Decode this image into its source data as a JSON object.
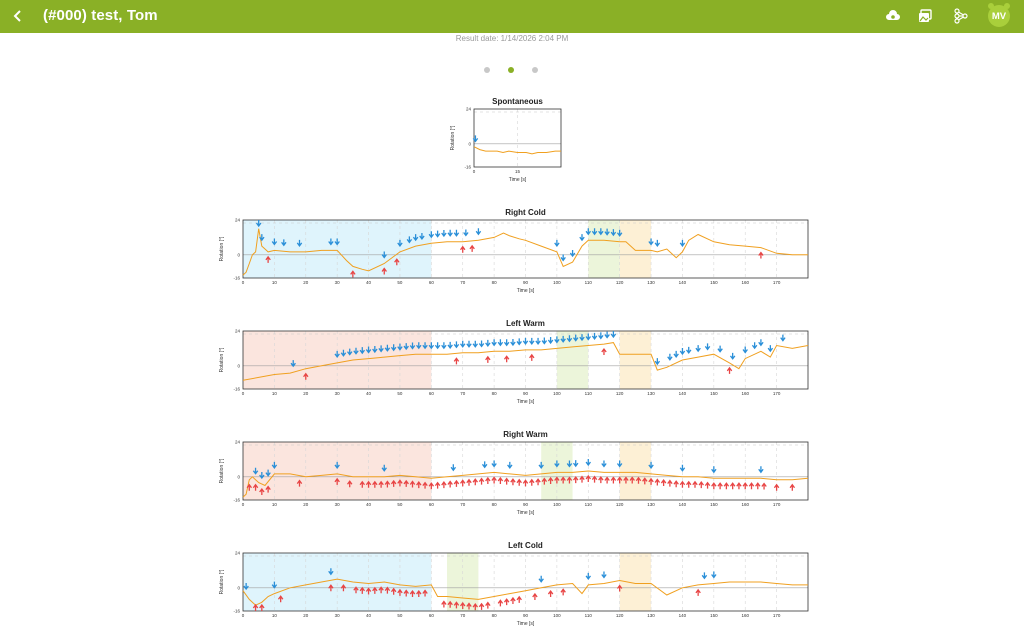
{
  "header": {
    "title": "(#000) test, Tom",
    "back_icon": "chevron-left-icon",
    "icons": [
      "cloud-sync-icon",
      "image-stack-icon",
      "network-icon"
    ],
    "avatar": "MV"
  },
  "result_date": "Result date: 1/14/2026 2:04 PM",
  "pager": {
    "pages": 3,
    "active": 1
  },
  "colors": {
    "header": "#8ab026",
    "trace": "#f0a020",
    "down_arrow": "#2a8fd8",
    "up_arrow": "#e84545",
    "cold_band": "#dff4fc",
    "warm_band": "#fbe5de",
    "green_band": "#ecf5da",
    "yellow_band": "#fdf0d5"
  },
  "chart_data": [
    {
      "type": "line",
      "title": "Spontaneous",
      "xlabel": "Time [s]",
      "ylabel": "Rotation [°]",
      "xlim": [
        0,
        30
      ],
      "ylim": [
        -16,
        24
      ],
      "xticks": [
        "0",
        "15"
      ],
      "yticks": [
        "24",
        "0",
        "-16"
      ],
      "bands": [],
      "x": [
        0,
        2,
        4,
        6,
        8,
        10,
        12,
        15,
        18,
        20,
        22,
        25,
        28,
        30
      ],
      "y": [
        -2,
        -4,
        -5,
        -5,
        -5,
        -6,
        -5,
        -6,
        -6,
        -7,
        -6,
        -6,
        -5,
        -5
      ],
      "down_markers": [
        0.5
      ],
      "up_markers": []
    },
    {
      "type": "line",
      "title": "Right Cold",
      "xlabel": "Time [s]",
      "ylabel": "Rotation [°]",
      "xlim": [
        0,
        180
      ],
      "ylim": [
        -16,
        24
      ],
      "xticks": [
        "0",
        "10",
        "20",
        "30",
        "40",
        "50",
        "60",
        "70",
        "80",
        "90",
        "100",
        "110",
        "120",
        "130",
        "140",
        "150",
        "160",
        "170"
      ],
      "yticks": [
        "24",
        "0",
        "-16"
      ],
      "bands": [
        {
          "from": 0,
          "to": 60,
          "kind": "cold"
        },
        {
          "from": 110,
          "to": 120,
          "kind": "green"
        },
        {
          "from": 120,
          "to": 130,
          "kind": "yellow"
        }
      ],
      "x": [
        0,
        1,
        2,
        3,
        4,
        5,
        6,
        7,
        8,
        10,
        15,
        20,
        25,
        30,
        33,
        35,
        38,
        40,
        45,
        50,
        55,
        60,
        65,
        70,
        75,
        80,
        83,
        85,
        88,
        90,
        95,
        100,
        102,
        105,
        108,
        110,
        115,
        120,
        122,
        125,
        130,
        132,
        135,
        138,
        140,
        142,
        145,
        150,
        155,
        160,
        165,
        170,
        175,
        180
      ],
      "y": [
        -14,
        -12,
        -6,
        0,
        2,
        18,
        6,
        4,
        2,
        3,
        2,
        2,
        3,
        3,
        -4,
        -8,
        -10,
        -11,
        -6,
        2,
        6,
        8,
        9,
        9,
        10,
        12,
        15,
        13,
        11,
        10,
        6,
        2,
        -8,
        -5,
        6,
        10,
        10,
        9,
        9,
        3,
        3,
        2,
        4,
        -2,
        2,
        10,
        14,
        9,
        7,
        6,
        5,
        1,
        0,
        0
      ],
      "down_markers": [
        5,
        6,
        10,
        13,
        18,
        28,
        30,
        45,
        50,
        53,
        55,
        57,
        60,
        62,
        64,
        66,
        68,
        71,
        75,
        100,
        102,
        105,
        108,
        110,
        112,
        114,
        116,
        118,
        120,
        130,
        132,
        140
      ],
      "up_markers": [
        8,
        35,
        45,
        49,
        70,
        73,
        165
      ]
    },
    {
      "type": "line",
      "title": "Left Warm",
      "xlabel": "Time [s]",
      "ylabel": "Rotation [°]",
      "xlim": [
        0,
        180
      ],
      "ylim": [
        -16,
        24
      ],
      "xticks": [
        "0",
        "10",
        "20",
        "30",
        "40",
        "50",
        "60",
        "70",
        "80",
        "90",
        "100",
        "110",
        "120",
        "130",
        "140",
        "150",
        "160",
        "170"
      ],
      "yticks": [
        "24",
        "0",
        "-16"
      ],
      "bands": [
        {
          "from": 0,
          "to": 60,
          "kind": "warm"
        },
        {
          "from": 100,
          "to": 110,
          "kind": "green"
        },
        {
          "from": 120,
          "to": 130,
          "kind": "yellow"
        }
      ],
      "x": [
        0,
        5,
        10,
        15,
        20,
        25,
        30,
        35,
        40,
        45,
        50,
        55,
        60,
        65,
        70,
        75,
        80,
        85,
        90,
        95,
        100,
        105,
        110,
        115,
        118,
        120,
        125,
        130,
        132,
        135,
        140,
        145,
        150,
        155,
        158,
        160,
        165,
        168,
        170,
        175,
        180
      ],
      "y": [
        -10,
        -8,
        -6,
        -5,
        -2,
        0,
        2,
        4,
        5,
        6,
        7,
        8,
        8,
        8,
        9,
        9,
        10,
        10,
        11,
        11,
        12,
        13,
        14,
        15,
        16,
        8,
        8,
        8,
        -3,
        -1,
        4,
        6,
        8,
        2,
        -2,
        5,
        10,
        6,
        14,
        12,
        14
      ],
      "down_markers": [
        16,
        30,
        32,
        34,
        36,
        38,
        40,
        42,
        44,
        46,
        48,
        50,
        52,
        54,
        56,
        58,
        60,
        62,
        64,
        66,
        68,
        70,
        72,
        74,
        76,
        78,
        80,
        82,
        84,
        86,
        88,
        90,
        92,
        94,
        96,
        98,
        100,
        102,
        104,
        106,
        108,
        110,
        112,
        114,
        116,
        118,
        132,
        136,
        138,
        140,
        142,
        145,
        148,
        152,
        156,
        160,
        163,
        165,
        168,
        172
      ],
      "up_markers": [
        20,
        68,
        78,
        84,
        92,
        115,
        155
      ]
    },
    {
      "type": "line",
      "title": "Right Warm",
      "xlabel": "Time [s]",
      "ylabel": "Rotation [°]",
      "xlim": [
        0,
        180
      ],
      "ylim": [
        -16,
        24
      ],
      "xticks": [
        "0",
        "10",
        "20",
        "30",
        "40",
        "50",
        "60",
        "70",
        "80",
        "90",
        "100",
        "110",
        "120",
        "130",
        "140",
        "150",
        "160",
        "170"
      ],
      "yticks": [
        "24",
        "0",
        "-16"
      ],
      "bands": [
        {
          "from": 0,
          "to": 60,
          "kind": "warm"
        },
        {
          "from": 95,
          "to": 105,
          "kind": "green"
        },
        {
          "from": 120,
          "to": 130,
          "kind": "yellow"
        }
      ],
      "x": [
        0,
        1,
        2,
        3,
        5,
        7,
        10,
        15,
        20,
        25,
        30,
        35,
        40,
        45,
        50,
        55,
        60,
        65,
        70,
        75,
        80,
        85,
        90,
        95,
        100,
        105,
        110,
        115,
        120,
        125,
        130,
        135,
        140,
        145,
        150,
        155,
        160,
        165,
        170,
        175,
        180
      ],
      "y": [
        -14,
        -12,
        -2,
        0,
        -4,
        -6,
        2,
        2,
        0,
        1,
        2,
        0,
        0,
        0,
        1,
        0,
        -1,
        0,
        1,
        2,
        3,
        2,
        1,
        2,
        3,
        3,
        4,
        3,
        3,
        3,
        2,
        1,
        0,
        0,
        -1,
        -1,
        -1,
        -1,
        -2,
        -2,
        -1
      ],
      "down_markers": [
        4,
        6,
        8,
        10,
        30,
        45,
        67,
        77,
        80,
        85,
        95,
        100,
        104,
        106,
        110,
        115,
        120,
        130,
        140,
        150,
        165
      ],
      "up_markers": [
        2,
        4,
        6,
        8,
        18,
        30,
        34,
        38,
        40,
        42,
        44,
        46,
        48,
        50,
        52,
        54,
        56,
        58,
        60,
        62,
        64,
        66,
        68,
        70,
        72,
        74,
        76,
        78,
        80,
        82,
        84,
        86,
        88,
        90,
        92,
        94,
        96,
        98,
        100,
        102,
        104,
        106,
        108,
        110,
        112,
        114,
        116,
        118,
        120,
        122,
        124,
        126,
        128,
        130,
        132,
        134,
        136,
        138,
        140,
        142,
        144,
        146,
        148,
        150,
        152,
        154,
        156,
        158,
        160,
        162,
        164,
        166,
        170,
        175
      ]
    },
    {
      "type": "line",
      "title": "Left Cold",
      "xlabel": "Time [s]",
      "ylabel": "Rotation [°]",
      "xlim": [
        0,
        180
      ],
      "ylim": [
        -16,
        24
      ],
      "xticks": [
        "0",
        "10",
        "20",
        "30",
        "40",
        "50",
        "60",
        "70",
        "80",
        "90",
        "100",
        "110",
        "120",
        "130",
        "140",
        "150",
        "160",
        "170"
      ],
      "yticks": [
        "24",
        "0",
        "-16"
      ],
      "bands": [
        {
          "from": 0,
          "to": 60,
          "kind": "cold"
        },
        {
          "from": 65,
          "to": 75,
          "kind": "green"
        },
        {
          "from": 120,
          "to": 130,
          "kind": "yellow"
        }
      ],
      "x": [
        0,
        2,
        4,
        6,
        8,
        10,
        15,
        20,
        25,
        30,
        35,
        40,
        45,
        50,
        55,
        60,
        62,
        65,
        70,
        75,
        80,
        85,
        90,
        95,
        100,
        105,
        108,
        110,
        115,
        120,
        125,
        130,
        135,
        140,
        145,
        150,
        155,
        160,
        165,
        170,
        175,
        180
      ],
      "y": [
        -2,
        -8,
        -12,
        -10,
        -6,
        -4,
        0,
        2,
        4,
        6,
        4,
        3,
        4,
        2,
        1,
        2,
        -6,
        -6,
        -7,
        -8,
        -6,
        -4,
        -2,
        0,
        2,
        3,
        -4,
        2,
        3,
        5,
        3,
        3,
        -5,
        0,
        2,
        3,
        4,
        4,
        4,
        3,
        2,
        2
      ],
      "down_markers": [
        1,
        10,
        28,
        95,
        110,
        115,
        147,
        150
      ],
      "up_markers": [
        4,
        6,
        12,
        28,
        32,
        36,
        38,
        40,
        42,
        44,
        46,
        48,
        50,
        52,
        54,
        56,
        58,
        64,
        66,
        68,
        70,
        72,
        74,
        76,
        78,
        82,
        84,
        86,
        88,
        93,
        98,
        102,
        120,
        145
      ]
    }
  ]
}
